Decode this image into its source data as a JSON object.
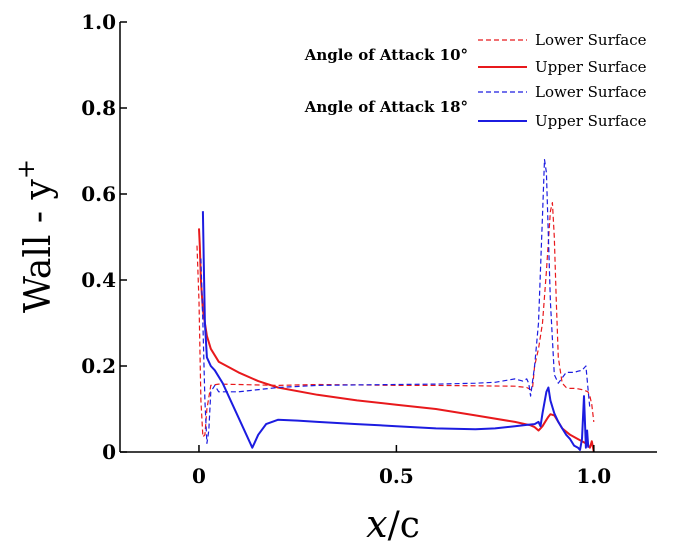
{
  "chart_data": {
    "type": "line",
    "title": "",
    "xlabel": "x/c",
    "xlabel_parts": {
      "var": "x",
      "rest": "/c"
    },
    "ylabel": "Wall - y+",
    "ylabel_parts": {
      "base": "Wall - y",
      "sup": "+"
    },
    "xlim": [
      -0.2,
      1.16
    ],
    "ylim": [
      0,
      1.0
    ],
    "x_ticks": [
      {
        "value": 0,
        "label": "0"
      },
      {
        "value": 0.5,
        "label": "0.5"
      },
      {
        "value": 1.0,
        "label": "1.0"
      }
    ],
    "y_ticks": [
      {
        "value": 0,
        "label": "0"
      },
      {
        "value": 0.2,
        "label": "0.2"
      },
      {
        "value": 0.4,
        "label": "0.4"
      },
      {
        "value": 0.6,
        "label": "0.6"
      },
      {
        "value": 0.8,
        "label": "0.8"
      },
      {
        "value": 1.0,
        "label": "1.0"
      }
    ],
    "grid": false,
    "legend_position": "top-right",
    "legend_groups": [
      {
        "label": "Angle of Attack 10°",
        "series_index": [
          0,
          1
        ]
      },
      {
        "label": "Angle of Attack 18°",
        "series_index": [
          2,
          3
        ]
      }
    ],
    "series": [
      {
        "name": "Lower Surface",
        "color": "#e8191c",
        "dash": "dashed",
        "x": [
          -0.005,
          0.0,
          0.005,
          0.01,
          0.015,
          0.02,
          0.03,
          0.05,
          0.1,
          0.2,
          0.3,
          0.4,
          0.5,
          0.6,
          0.7,
          0.8,
          0.83,
          0.84,
          0.845,
          0.85,
          0.86,
          0.87,
          0.88,
          0.89,
          0.895,
          0.9,
          0.905,
          0.91,
          0.92,
          0.93,
          0.94,
          0.95,
          0.96,
          0.97,
          0.98,
          0.985,
          0.99,
          0.995,
          1.0
        ],
        "y": [
          0.48,
          0.35,
          0.12,
          0.035,
          0.04,
          0.1,
          0.155,
          0.158,
          0.157,
          0.155,
          0.157,
          0.156,
          0.155,
          0.155,
          0.154,
          0.153,
          0.15,
          0.145,
          0.15,
          0.2,
          0.24,
          0.3,
          0.42,
          0.56,
          0.58,
          0.5,
          0.35,
          0.22,
          0.16,
          0.15,
          0.148,
          0.148,
          0.147,
          0.145,
          0.142,
          0.14,
          0.13,
          0.11,
          0.07
        ]
      },
      {
        "name": "Upper Surface",
        "color": "#e8191c",
        "dash": "solid",
        "x": [
          0.0,
          0.002,
          0.005,
          0.01,
          0.02,
          0.03,
          0.05,
          0.08,
          0.1,
          0.15,
          0.2,
          0.3,
          0.4,
          0.5,
          0.6,
          0.7,
          0.8,
          0.84,
          0.85,
          0.86,
          0.865,
          0.87,
          0.88,
          0.885,
          0.89,
          0.9,
          0.91,
          0.92,
          0.94,
          0.96,
          0.98,
          0.99,
          0.995,
          1.0
        ],
        "y": [
          0.52,
          0.48,
          0.4,
          0.33,
          0.27,
          0.24,
          0.21,
          0.195,
          0.185,
          0.165,
          0.15,
          0.133,
          0.12,
          0.11,
          0.1,
          0.085,
          0.07,
          0.062,
          0.058,
          0.05,
          0.055,
          0.06,
          0.075,
          0.082,
          0.088,
          0.085,
          0.07,
          0.055,
          0.04,
          0.03,
          0.02,
          0.01,
          0.025,
          0.0
        ]
      },
      {
        "name": "Lower Surface",
        "color": "#1c1ce0",
        "dash": "dashed",
        "x": [
          0.005,
          0.01,
          0.015,
          0.02,
          0.025,
          0.03,
          0.04,
          0.05,
          0.1,
          0.2,
          0.3,
          0.4,
          0.5,
          0.6,
          0.7,
          0.75,
          0.8,
          0.82,
          0.83,
          0.835,
          0.84,
          0.85,
          0.86,
          0.87,
          0.875,
          0.88,
          0.885,
          0.89,
          0.9,
          0.91,
          0.93,
          0.95,
          0.96,
          0.97,
          0.98,
          0.985,
          0.99
        ],
        "y": [
          0.45,
          0.3,
          0.12,
          0.02,
          0.05,
          0.14,
          0.155,
          0.14,
          0.14,
          0.15,
          0.155,
          0.156,
          0.157,
          0.158,
          0.16,
          0.162,
          0.17,
          0.165,
          0.17,
          0.16,
          0.13,
          0.2,
          0.3,
          0.55,
          0.68,
          0.65,
          0.5,
          0.35,
          0.18,
          0.16,
          0.185,
          0.185,
          0.188,
          0.19,
          0.2,
          0.15,
          0.1
        ]
      },
      {
        "name": "Upper Surface",
        "color": "#1c1ce0",
        "dash": "solid",
        "x": [
          0.01,
          0.012,
          0.015,
          0.02,
          0.03,
          0.04,
          0.06,
          0.08,
          0.1,
          0.12,
          0.135,
          0.14,
          0.15,
          0.17,
          0.2,
          0.25,
          0.3,
          0.4,
          0.5,
          0.6,
          0.7,
          0.75,
          0.8,
          0.83,
          0.85,
          0.86,
          0.865,
          0.87,
          0.88,
          0.885,
          0.89,
          0.9,
          0.91,
          0.92,
          0.93,
          0.94,
          0.95,
          0.96,
          0.965,
          0.97,
          0.975,
          0.98,
          0.983,
          0.986
        ],
        "y": [
          0.56,
          0.45,
          0.3,
          0.22,
          0.2,
          0.19,
          0.16,
          0.12,
          0.08,
          0.04,
          0.01,
          0.02,
          0.04,
          0.065,
          0.075,
          0.073,
          0.07,
          0.065,
          0.06,
          0.055,
          0.053,
          0.055,
          0.06,
          0.063,
          0.065,
          0.07,
          0.06,
          0.09,
          0.14,
          0.15,
          0.12,
          0.09,
          0.07,
          0.055,
          0.04,
          0.03,
          0.015,
          0.01,
          0.005,
          0.03,
          0.13,
          0.01,
          0.05,
          0.01
        ]
      }
    ]
  }
}
